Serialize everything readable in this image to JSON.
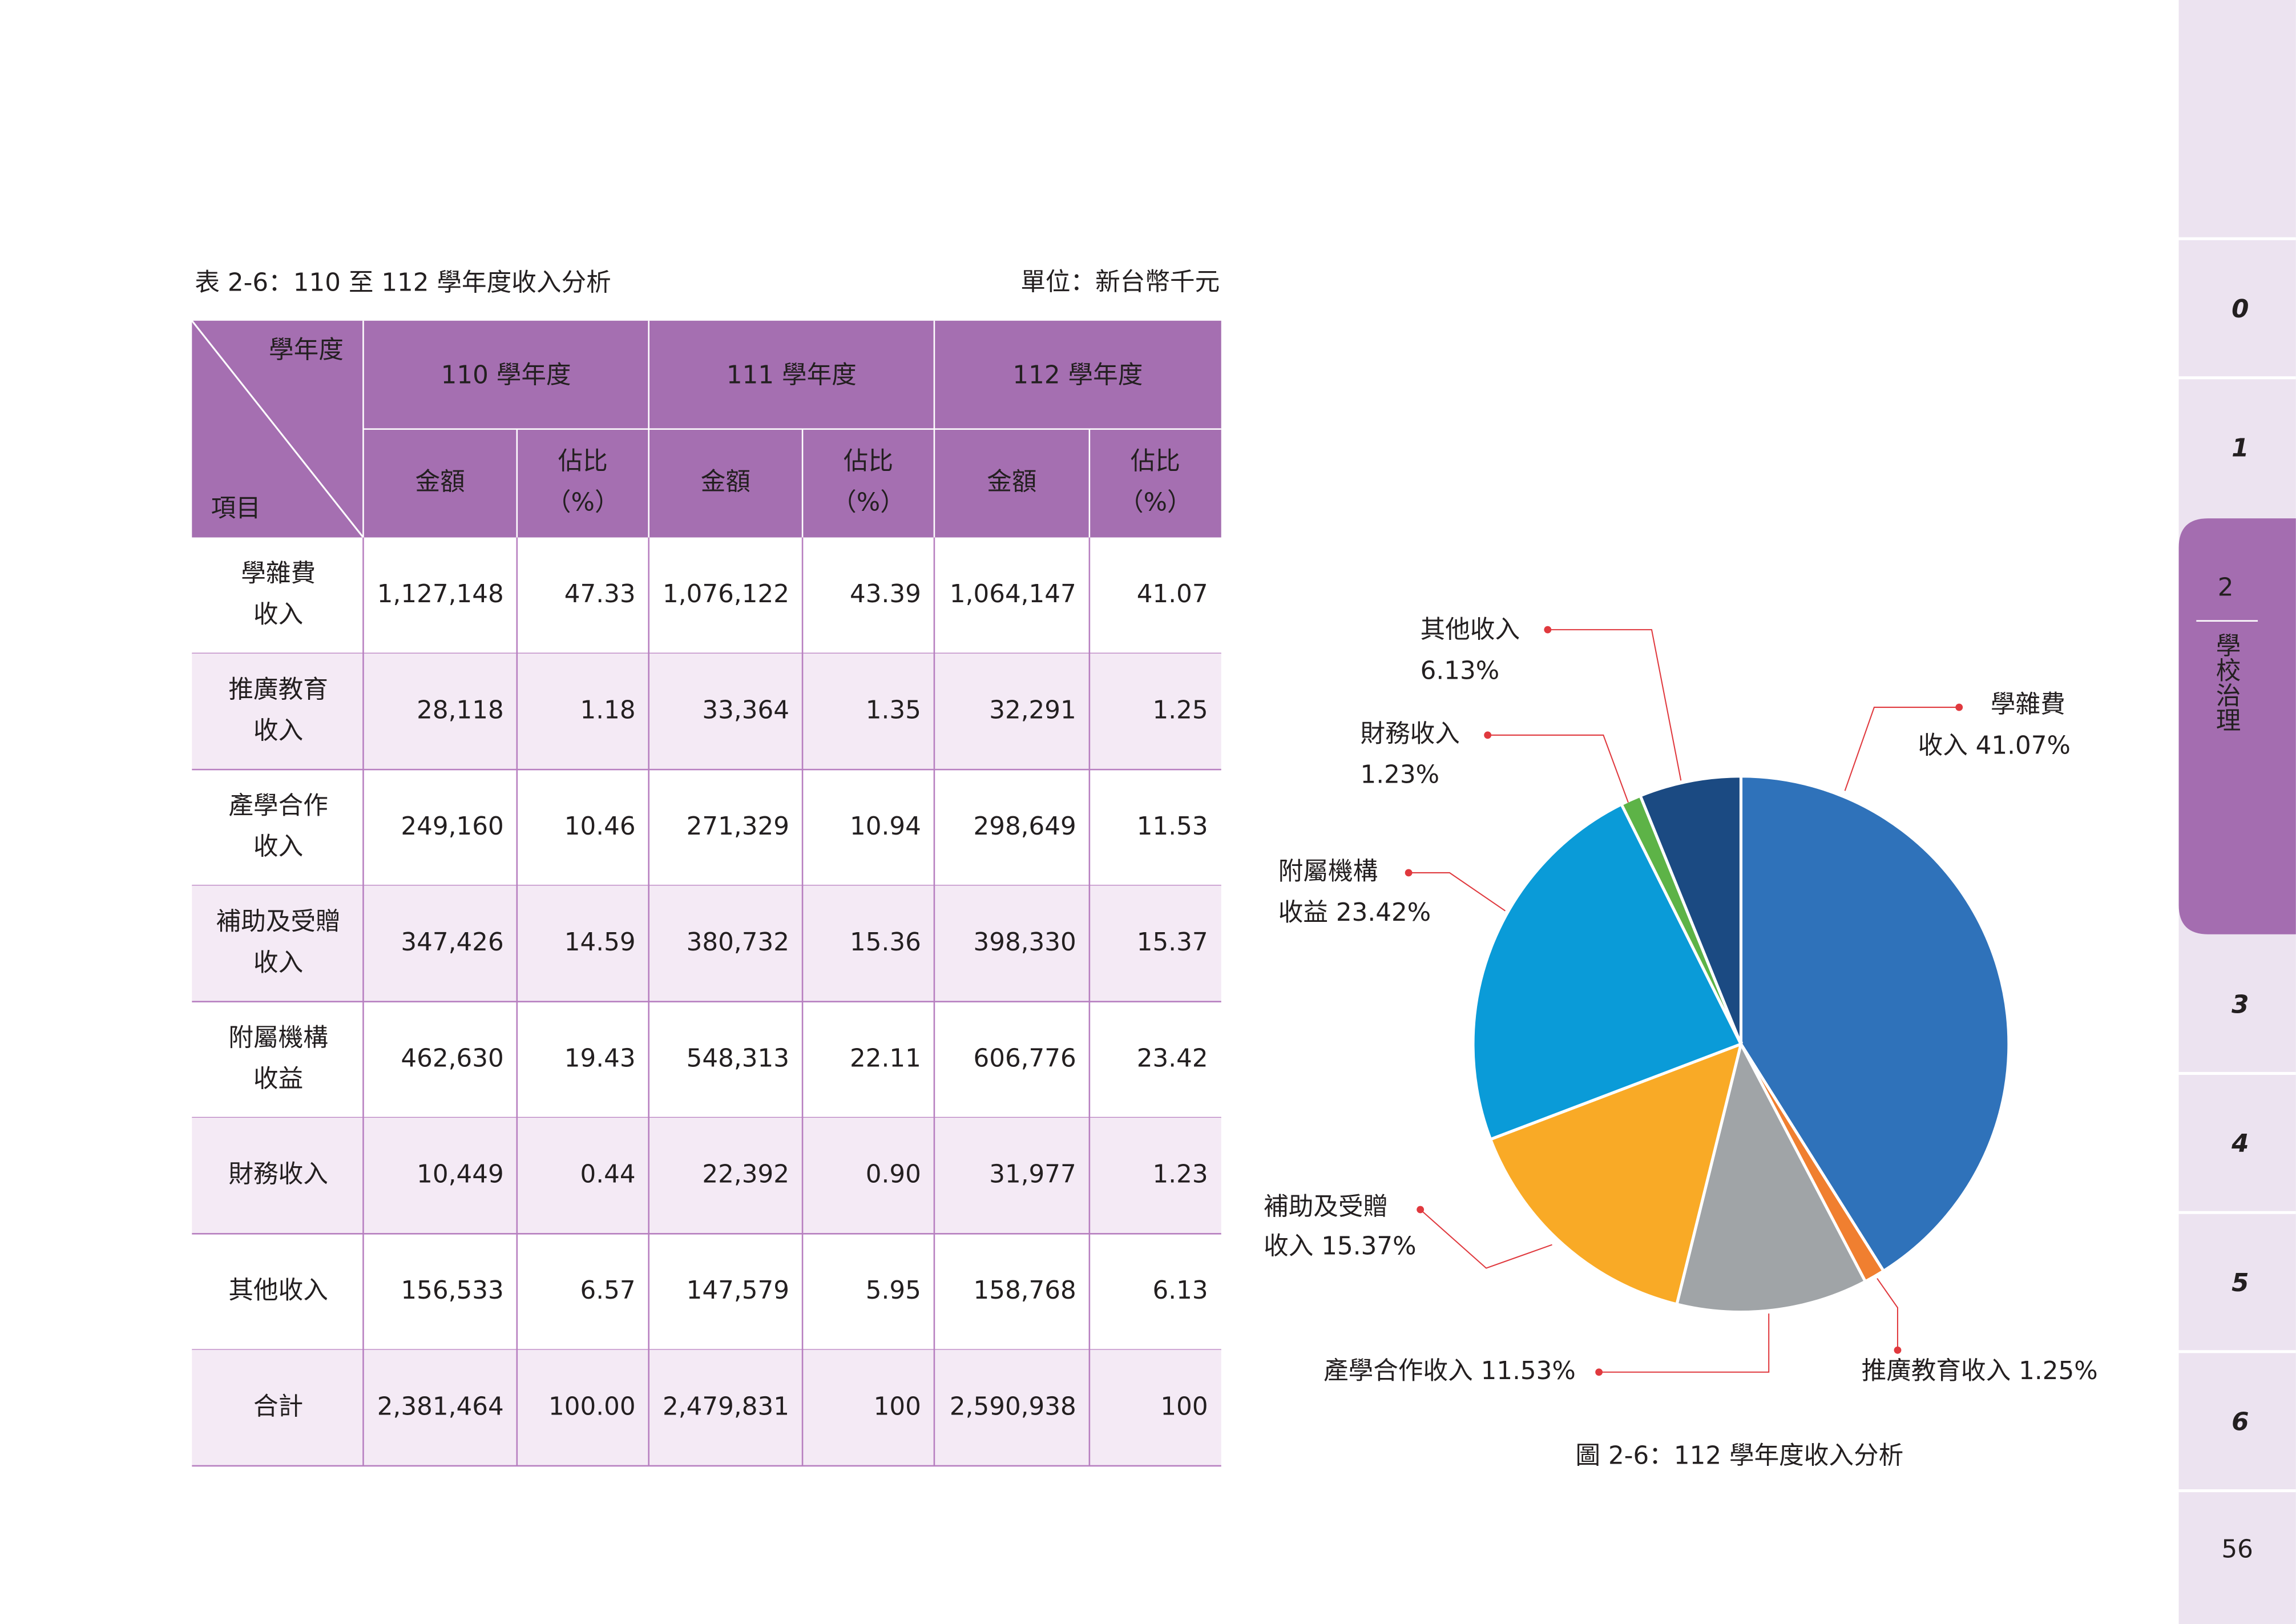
{
  "header": {
    "table_title": "表 2-6：110 至 112 學年度收入分析",
    "unit": "單位：新台幣千元"
  },
  "table": {
    "corner_top": "學年度",
    "corner_bottom": "項目",
    "years": [
      "110 學年度",
      "111 學年度",
      "112 學年度"
    ],
    "amount_header": "金額",
    "share_header": [
      "佔比",
      "（%）"
    ],
    "rows": [
      {
        "item": [
          "學雜費",
          "收入"
        ],
        "cells": [
          "1,127,148",
          "47.33",
          "1,076,122",
          "43.39",
          "1,064,147",
          "41.07"
        ]
      },
      {
        "item": [
          "推廣教育",
          "收入"
        ],
        "cells": [
          "28,118",
          "1.18",
          "33,364",
          "1.35",
          "32,291",
          "1.25"
        ]
      },
      {
        "item": [
          "產學合作",
          "收入"
        ],
        "cells": [
          "249,160",
          "10.46",
          "271,329",
          "10.94",
          "298,649",
          "11.53"
        ]
      },
      {
        "item": [
          "補助及受贈",
          "收入"
        ],
        "cells": [
          "347,426",
          "14.59",
          "380,732",
          "15.36",
          "398,330",
          "15.37"
        ]
      },
      {
        "item": [
          "附屬機構",
          "收益"
        ],
        "cells": [
          "462,630",
          "19.43",
          "548,313",
          "22.11",
          "606,776",
          "23.42"
        ]
      },
      {
        "item": [
          "財務收入"
        ],
        "cells": [
          "10,449",
          "0.44",
          "22,392",
          "0.90",
          "31,977",
          "1.23"
        ]
      },
      {
        "item": [
          "其他收入"
        ],
        "cells": [
          "156,533",
          "6.57",
          "147,579",
          "5.95",
          "158,768",
          "6.13"
        ]
      },
      {
        "item": [
          "合計"
        ],
        "cells": [
          "2,381,464",
          "100.00",
          "2,479,831",
          "100",
          "2,590,938",
          "100"
        ]
      }
    ]
  },
  "chart_data": {
    "type": "pie",
    "caption": "圖 2-6：112 學年度收入分析",
    "values": [
      41.07,
      1.25,
      11.53,
      15.37,
      23.42,
      1.23,
      6.13
    ],
    "value_labels": [
      [
        "學雜費",
        "收入 41.07%"
      ],
      [
        "推廣教育收入 1.25%"
      ],
      [
        "產學合作收入 11.53%"
      ],
      [
        "補助及受贈",
        "收入 15.37%"
      ],
      [
        "附屬機構",
        "收益 23.42%"
      ],
      [
        "財務收入",
        "1.23%"
      ],
      [
        "其他收入",
        "6.13%"
      ]
    ],
    "colors": [
      "#2f72ba",
      "#f07f30",
      "#a0a4a7",
      "#f9aa26",
      "#0a9bd8",
      "#5db347",
      "#1b4a82"
    ]
  },
  "sidebar": {
    "chapters": [
      "0",
      "1",
      "2",
      "3",
      "4",
      "5",
      "6"
    ],
    "active_title": "學校治理",
    "page_number": "56"
  }
}
